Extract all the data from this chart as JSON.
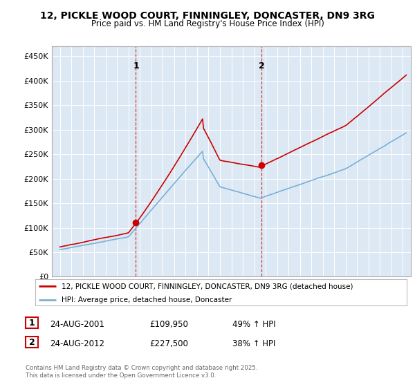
{
  "title_line1": "12, PICKLE WOOD COURT, FINNINGLEY, DONCASTER, DN9 3RG",
  "title_line2": "Price paid vs. HM Land Registry's House Price Index (HPI)",
  "legend_label1": "12, PICKLE WOOD COURT, FINNINGLEY, DONCASTER, DN9 3RG (detached house)",
  "legend_label2": "HPI: Average price, detached house, Doncaster",
  "sale1_date": "24-AUG-2001",
  "sale1_price": 109950,
  "sale1_hpi": "49% ↑ HPI",
  "sale2_date": "24-AUG-2012",
  "sale2_price": 227500,
  "sale2_hpi": "38% ↑ HPI",
  "copyright": "Contains HM Land Registry data © Crown copyright and database right 2025.\nThis data is licensed under the Open Government Licence v3.0.",
  "property_color": "#cc0000",
  "hpi_color": "#7aafd4",
  "vline_color": "#cc0000",
  "plot_bg_color": "#dce9f5",
  "ylim": [
    0,
    470000
  ],
  "yticks": [
    0,
    50000,
    100000,
    150000,
    200000,
    250000,
    300000,
    350000,
    400000,
    450000
  ],
  "ytick_labels": [
    "£0",
    "£50K",
    "£100K",
    "£150K",
    "£200K",
    "£250K",
    "£300K",
    "£350K",
    "£400K",
    "£450K"
  ],
  "sale1_year": 2001.65,
  "sale2_year": 2012.65
}
